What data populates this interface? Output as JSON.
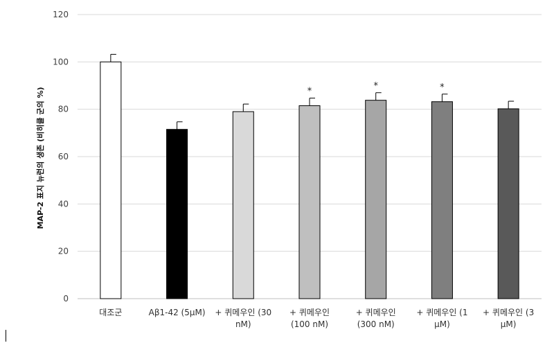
{
  "chart_data": {
    "type": "bar",
    "ylabel": "MAP-2 표지 뉴런의 생존 (비히클 군의 %)",
    "ylim": [
      0,
      120
    ],
    "yticks": [
      0,
      20,
      40,
      60,
      80,
      100,
      120
    ],
    "grid": true,
    "categories": [
      {
        "lines": [
          "대조군"
        ]
      },
      {
        "lines": [
          "Aβ1-42 (5μM)"
        ]
      },
      {
        "lines": [
          "+ 퀴메우인 (30",
          "nM)"
        ]
      },
      {
        "lines": [
          "+ 퀴메우인",
          "(100 nM)"
        ]
      },
      {
        "lines": [
          "+ 퀴메우인",
          "(300 nM)"
        ]
      },
      {
        "lines": [
          "+ 퀴메우인 (1",
          "μM)"
        ]
      },
      {
        "lines": [
          "+ 퀴메우인 (3",
          "μM)"
        ]
      }
    ],
    "values": [
      100,
      71.5,
      79,
      81.5,
      83.8,
      83.2,
      80.2
    ],
    "errors": [
      3.2,
      3.2,
      3.2,
      3.2,
      3.2,
      3.2,
      3.2
    ],
    "significance": [
      "",
      "",
      "",
      "*",
      "*",
      "*",
      ""
    ],
    "colors": [
      "#ffffff",
      "#000000",
      "#d9d9d9",
      "#bfbfbf",
      "#a6a6a6",
      "#7f7f7f",
      "#595959"
    ]
  }
}
